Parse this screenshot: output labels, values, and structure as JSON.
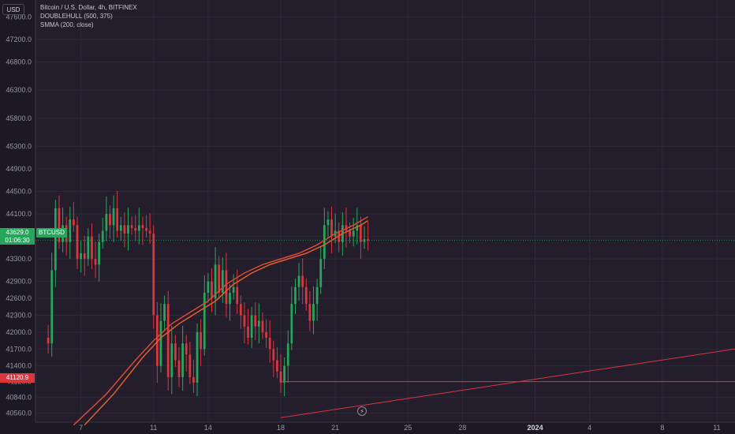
{
  "currency_button": "USD",
  "legend": {
    "symbol": "Bitcoin / U.S. Dollar, 4h, BITFINEX",
    "indicator1": "DOUBLEHULL (500, 375)",
    "indicator2": "SMMA (200, close)"
  },
  "last_price": {
    "price": "43629.0",
    "countdown": "01:06:30",
    "symbol": "BTCUSD"
  },
  "level_price": "41120.9",
  "colors": {
    "background": "#1d1924",
    "up": "#26a65b",
    "down": "#d9363e",
    "indicator": "#d94a35",
    "level_line": "#d9363e"
  },
  "chart_data": {
    "type": "candlestick",
    "y_ticks": [
      "47600.0",
      "47200.0",
      "46800.0",
      "46300.0",
      "45800.0",
      "45300.0",
      "44900.0",
      "44500.0",
      "44100.0",
      "43700.0",
      "43300.0",
      "42900.0",
      "42600.0",
      "42300.0",
      "42000.0",
      "41700.0",
      "41400.0",
      "41120.9",
      "40840.0",
      "40560.0"
    ],
    "ylim": [
      40400,
      47900
    ],
    "x_ticks": [
      {
        "label": "7",
        "day": 7
      },
      {
        "label": "11",
        "day": 11
      },
      {
        "label": "14",
        "day": 14
      },
      {
        "label": "18",
        "day": 18
      },
      {
        "label": "21",
        "day": 21
      },
      {
        "label": "25",
        "day": 25
      },
      {
        "label": "28",
        "day": 28
      },
      {
        "label": "2024",
        "day": 32,
        "bold": true
      },
      {
        "label": "4",
        "day": 35
      },
      {
        "label": "8",
        "day": 39
      },
      {
        "label": "11",
        "day": 42
      }
    ],
    "xlim": [
      4.5,
      43.0
    ],
    "close_series": [
      [
        5.0,
        41900
      ],
      [
        5.2,
        41800
      ],
      [
        5.4,
        43100
      ],
      [
        5.6,
        44200
      ],
      [
        5.8,
        43600
      ],
      [
        6.0,
        43900
      ],
      [
        6.2,
        43600
      ],
      [
        6.4,
        44000
      ],
      [
        6.6,
        43900
      ],
      [
        6.8,
        43300
      ],
      [
        7.0,
        43400
      ],
      [
        7.2,
        43300
      ],
      [
        7.4,
        43700
      ],
      [
        7.6,
        43300
      ],
      [
        7.8,
        43200
      ],
      [
        8.0,
        43600
      ],
      [
        8.2,
        43800
      ],
      [
        8.4,
        44100
      ],
      [
        8.6,
        43900
      ],
      [
        8.8,
        44200
      ],
      [
        9.0,
        43800
      ],
      [
        9.2,
        43900
      ],
      [
        9.4,
        43750
      ],
      [
        9.6,
        43900
      ],
      [
        9.8,
        43850
      ],
      [
        10.0,
        43800
      ],
      [
        10.2,
        43900
      ],
      [
        10.4,
        43850
      ],
      [
        10.6,
        43800
      ],
      [
        10.8,
        43750
      ],
      [
        11.0,
        42300
      ],
      [
        11.2,
        41400
      ],
      [
        11.4,
        42200
      ],
      [
        11.6,
        42500
      ],
      [
        11.8,
        41200
      ],
      [
        12.0,
        41800
      ],
      [
        12.2,
        41500
      ],
      [
        12.4,
        41200
      ],
      [
        12.6,
        41800
      ],
      [
        12.8,
        41600
      ],
      [
        13.0,
        41200
      ],
      [
        13.2,
        41100
      ],
      [
        13.4,
        42000
      ],
      [
        13.6,
        41700
      ],
      [
        13.8,
        42700
      ],
      [
        14.0,
        42900
      ],
      [
        14.2,
        42600
      ],
      [
        14.4,
        43200
      ],
      [
        14.6,
        42700
      ],
      [
        14.8,
        43100
      ],
      [
        15.0,
        42500
      ],
      [
        15.2,
        42700
      ],
      [
        15.4,
        42800
      ],
      [
        15.6,
        42500
      ],
      [
        15.8,
        42300
      ],
      [
        16.0,
        42100
      ],
      [
        16.2,
        41900
      ],
      [
        16.4,
        42300
      ],
      [
        16.6,
        42100
      ],
      [
        16.8,
        42200
      ],
      [
        17.0,
        42000
      ],
      [
        17.2,
        41900
      ],
      [
        17.4,
        41700
      ],
      [
        17.6,
        41500
      ],
      [
        17.8,
        41300
      ],
      [
        18.0,
        41100
      ],
      [
        18.2,
        41400
      ],
      [
        18.4,
        41800
      ],
      [
        18.6,
        42500
      ],
      [
        18.8,
        42800
      ],
      [
        19.0,
        43000
      ],
      [
        19.2,
        42800
      ],
      [
        19.4,
        42500
      ],
      [
        19.6,
        42200
      ],
      [
        19.8,
        42500
      ],
      [
        20.0,
        42800
      ],
      [
        20.2,
        43300
      ],
      [
        20.4,
        43900
      ],
      [
        20.6,
        44000
      ],
      [
        20.8,
        43700
      ],
      [
        21.0,
        43800
      ],
      [
        21.2,
        43600
      ],
      [
        21.4,
        43900
      ],
      [
        21.6,
        43800
      ],
      [
        21.8,
        43700
      ],
      [
        22.0,
        43800
      ],
      [
        22.2,
        43900
      ],
      [
        22.4,
        43600
      ],
      [
        22.6,
        43650
      ],
      [
        22.8,
        43629
      ]
    ],
    "series": [
      {
        "name": "DOUBLEHULL (500, 375)",
        "points": [
          [
            6.6,
            40350
          ],
          [
            8.4,
            40900
          ],
          [
            10.0,
            41500
          ],
          [
            11.0,
            41850
          ],
          [
            12.0,
            42150
          ],
          [
            13.0,
            42350
          ],
          [
            14.0,
            42550
          ],
          [
            15.0,
            42850
          ],
          [
            16.0,
            43050
          ],
          [
            17.0,
            43200
          ],
          [
            18.0,
            43300
          ],
          [
            19.0,
            43400
          ],
          [
            20.0,
            43550
          ],
          [
            21.0,
            43750
          ],
          [
            22.0,
            43900
          ],
          [
            22.8,
            44050
          ]
        ]
      },
      {
        "name": "SMMA (200, close)",
        "points": [
          [
            7.2,
            40350
          ],
          [
            8.8,
            40900
          ],
          [
            10.4,
            41550
          ],
          [
            11.4,
            41900
          ],
          [
            12.4,
            42150
          ],
          [
            13.4,
            42350
          ],
          [
            14.4,
            42550
          ],
          [
            15.4,
            42850
          ],
          [
            16.4,
            43050
          ],
          [
            17.4,
            43200
          ],
          [
            18.4,
            43300
          ],
          [
            19.4,
            43400
          ],
          [
            20.4,
            43550
          ],
          [
            21.4,
            43750
          ],
          [
            22.4,
            43900
          ],
          [
            22.8,
            43980
          ]
        ]
      }
    ],
    "trendline": [
      [
        18.0,
        40480
      ],
      [
        43.0,
        41700
      ]
    ],
    "level": 41120.9,
    "level_start_day": 18.0
  }
}
